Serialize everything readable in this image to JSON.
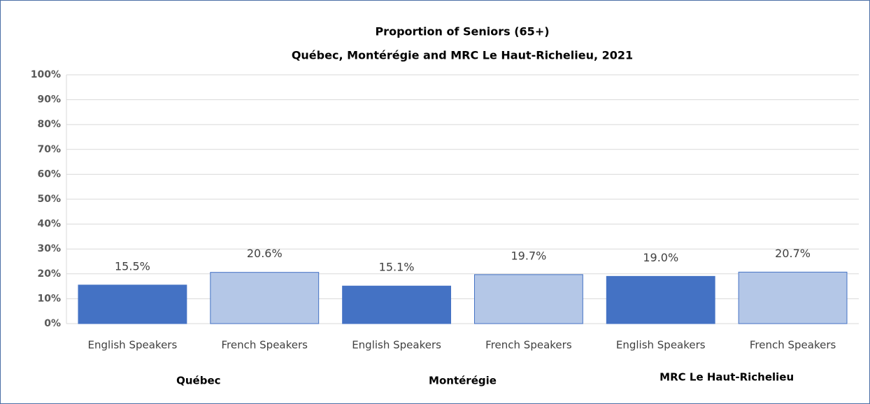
{
  "chart_data": {
    "type": "bar",
    "title": "Proportion of Seniors (65+)",
    "subtitle": "Québec, Montérégie and MRC Le Haut-Richelieu,  2021",
    "categories": [
      "English Speakers",
      "French Speakers",
      "English Speakers",
      "French Speakers",
      "English Speakers",
      "French Speakers"
    ],
    "groups": [
      "Québec",
      "Montérégie",
      "MRC Le Haut-Richelieu"
    ],
    "values": [
      15.5,
      20.6,
      15.1,
      19.7,
      19.0,
      20.7
    ],
    "value_labels": [
      "15.5%",
      "20.6%",
      "15.1%",
      "19.7%",
      "19.0%",
      "20.7%"
    ],
    "colors": [
      "#4472c4",
      "#b4c7e7",
      "#4472c4",
      "#b4c7e7",
      "#4472c4",
      "#b4c7e7"
    ],
    "edge_color": "#4472c4",
    "ylim": [
      0,
      100
    ],
    "yticks": [
      {
        "value": 0,
        "label": "0%"
      },
      {
        "value": 10,
        "label": "10%"
      },
      {
        "value": 20,
        "label": "20%"
      },
      {
        "value": 30,
        "label": "30%"
      },
      {
        "value": 40,
        "label": "40%"
      },
      {
        "value": 50,
        "label": "50%"
      },
      {
        "value": 60,
        "label": "60%"
      },
      {
        "value": 70,
        "label": "70%"
      },
      {
        "value": 80,
        "label": "80%"
      },
      {
        "value": 90,
        "label": "90%"
      },
      {
        "value": 100,
        "label": "100%"
      }
    ],
    "grid": true
  }
}
